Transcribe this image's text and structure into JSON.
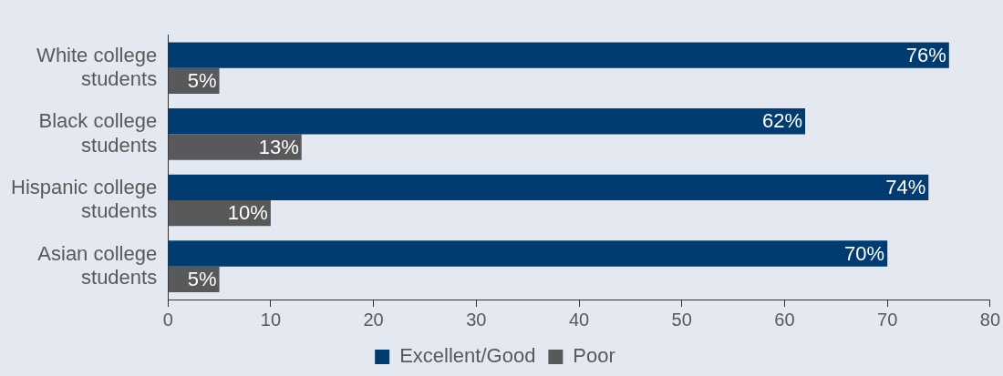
{
  "chart_data": {
    "type": "bar",
    "orientation": "horizontal",
    "categories": [
      "White college students",
      "Black college students",
      "Hispanic college students",
      "Asian college students"
    ],
    "series": [
      {
        "name": "Excellent/Good",
        "color": "#003b71",
        "values": [
          76,
          62,
          74,
          70
        ],
        "value_labels": [
          "76%",
          "62%",
          "74%",
          "70%"
        ]
      },
      {
        "name": "Poor",
        "color": "#58595b",
        "values": [
          5,
          13,
          10,
          5
        ],
        "value_labels": [
          "5%",
          "13%",
          "10%",
          "5%"
        ]
      }
    ],
    "xlim": [
      0,
      80
    ],
    "xticks": [
      0,
      10,
      20,
      30,
      40,
      50,
      60,
      70,
      80
    ],
    "grid": false,
    "legend": "bottom"
  }
}
